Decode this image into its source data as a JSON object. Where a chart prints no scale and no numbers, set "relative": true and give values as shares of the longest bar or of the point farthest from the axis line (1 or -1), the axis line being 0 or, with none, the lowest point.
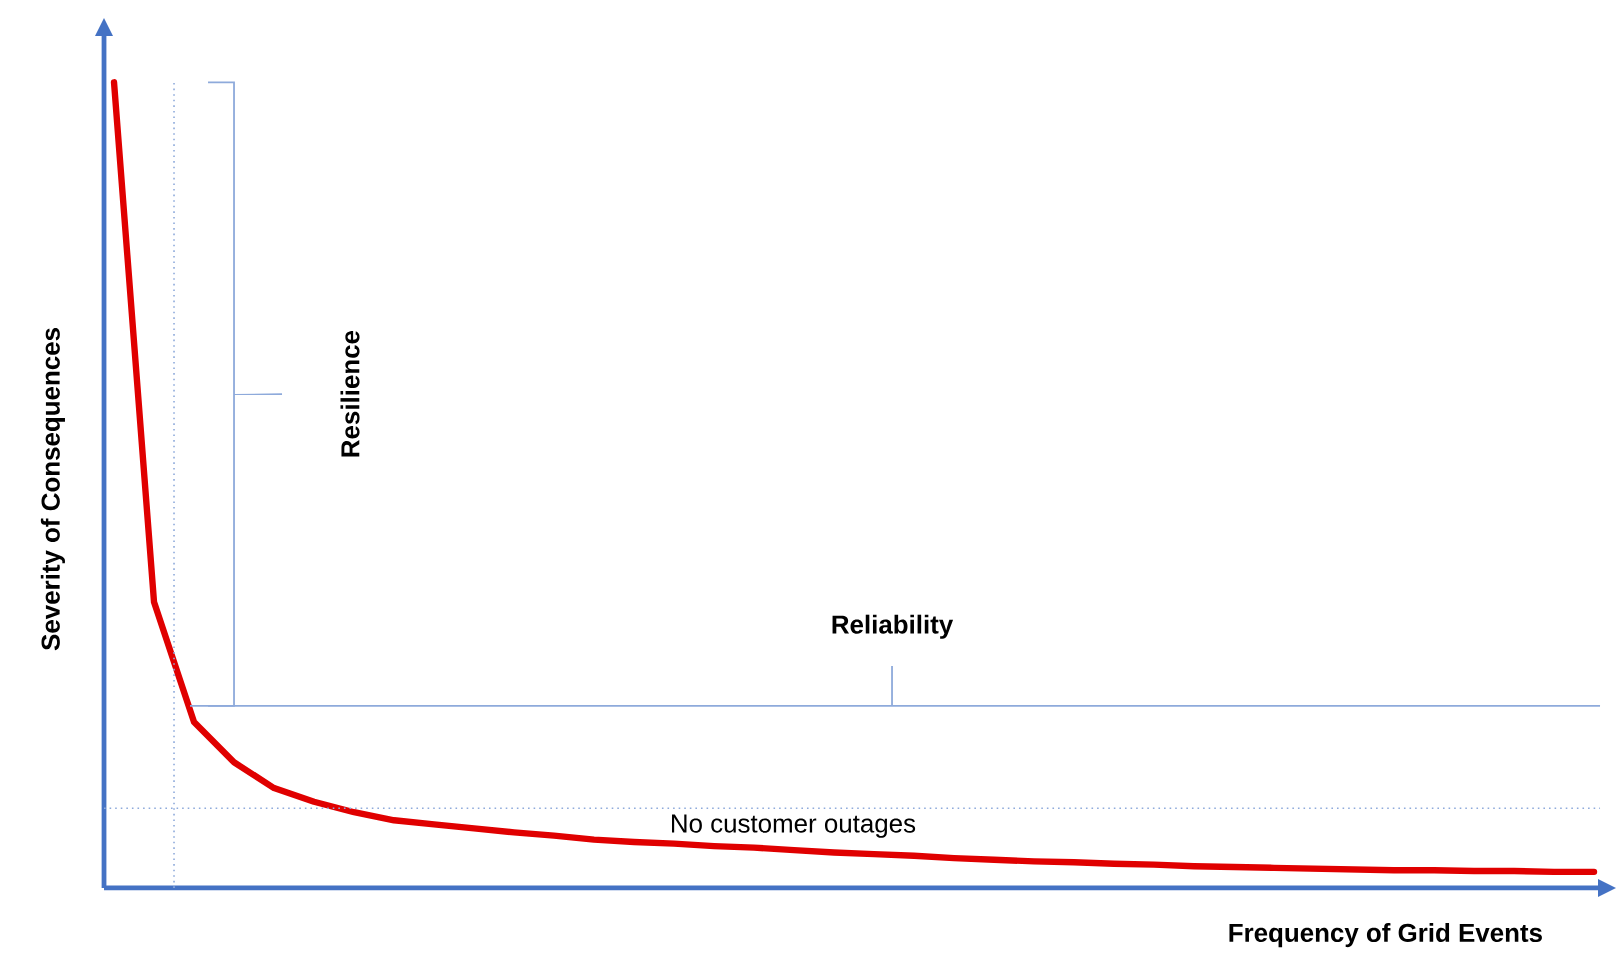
{
  "chart_data": {
    "type": "line",
    "relative": true,
    "xlabel": "Frequency of Grid Events",
    "ylabel": "Severity of Consequences",
    "categories": [
      null,
      null,
      null,
      null,
      null,
      null,
      null,
      null,
      null,
      null,
      null,
      null,
      null,
      null,
      null,
      null,
      null,
      null,
      null,
      null,
      null,
      null,
      null,
      null,
      null,
      null,
      null,
      null,
      null,
      null,
      null,
      null,
      null,
      null,
      null,
      null,
      null,
      null
    ],
    "marker": "none",
    "line_style": "solid",
    "series": [
      {
        "color": "#e00000",
        "values": [
          1.0,
          0.355,
          0.206,
          0.156,
          0.124,
          0.107,
          0.094,
          0.084,
          0.079,
          0.074,
          0.069,
          0.065,
          0.06,
          0.057,
          0.055,
          0.052,
          0.05,
          0.047,
          0.044,
          0.042,
          0.04,
          0.037,
          0.035,
          0.033,
          0.032,
          0.03,
          0.029,
          0.027,
          0.026,
          0.025,
          0.024,
          0.023,
          0.022,
          0.022,
          0.021,
          0.021,
          0.02,
          0.02
        ]
      }
    ],
    "ref_lines": [
      {
        "axis": "y",
        "value": 0.099,
        "label": "No customer outages",
        "color": "#8eaadb",
        "line_style": "dotted"
      }
    ],
    "annotations": [
      "Resilience",
      "Reliability"
    ]
  }
}
